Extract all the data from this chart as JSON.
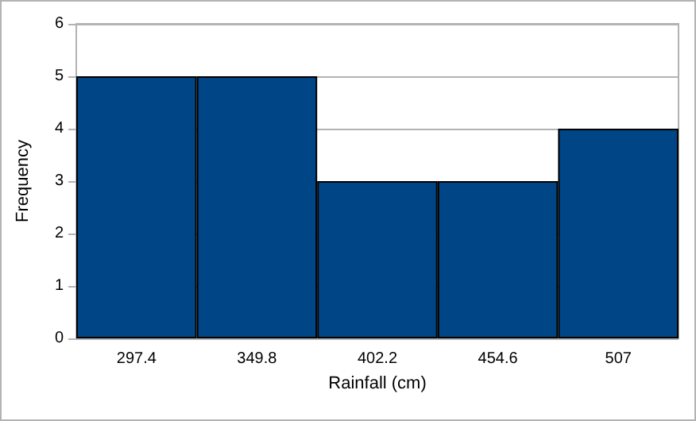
{
  "chart_data": {
    "type": "bar",
    "xlabel": "Rainfall (cm)",
    "ylabel": "Frequency",
    "categories": [
      "297.4",
      "349.8",
      "402.2",
      "454.6",
      "507"
    ],
    "values": [
      5,
      5,
      3,
      3,
      4
    ],
    "color": "#004586",
    "ylim": [
      0,
      6
    ],
    "yticks": [
      0,
      1,
      2,
      3,
      4,
      5,
      6
    ],
    "grid": "y"
  }
}
